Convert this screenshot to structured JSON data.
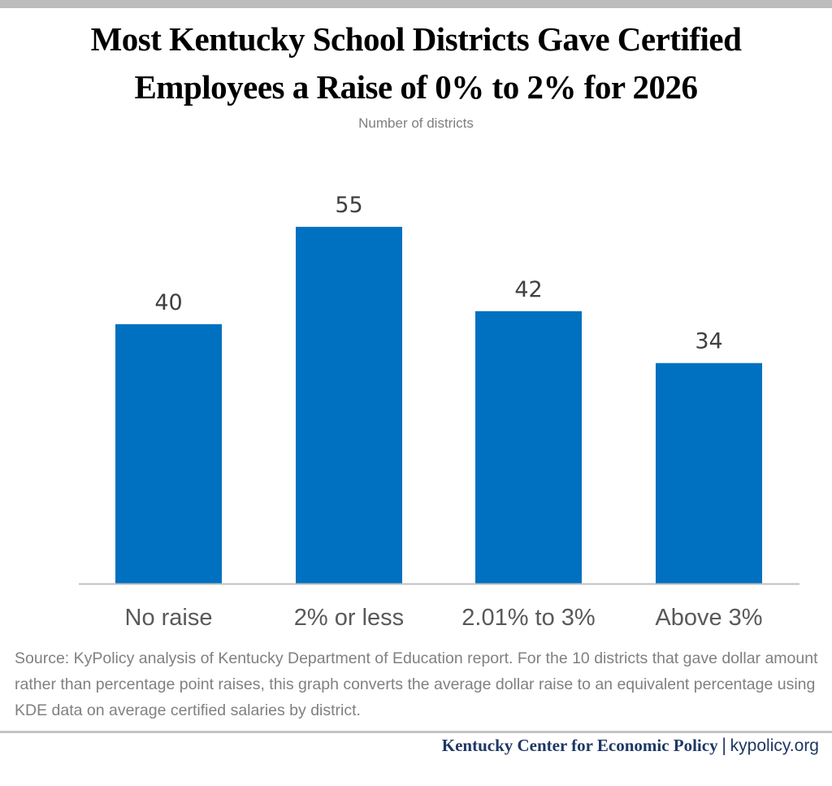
{
  "title_lines": [
    "Most Kentucky School Districts Gave Certified",
    "Employees a Raise of 0% to 2% for 2026"
  ],
  "subtitle": "Number of districts",
  "chart_data": {
    "type": "bar",
    "title": "Most Kentucky School Districts Gave Certified Employees a Raise of 0% to 2% for 2026",
    "subtitle": "Number of districts",
    "categories": [
      "No raise",
      "2% or less",
      "2.01% to 3%",
      "Above 3%"
    ],
    "values": [
      40,
      55,
      42,
      34
    ],
    "data_labels": [
      "40",
      "55",
      "42",
      "34"
    ],
    "xlabel": "",
    "ylabel": "",
    "ylim": [
      0,
      60
    ],
    "grid": false,
    "legend": "none",
    "bar_color": "#0070c0"
  },
  "source": "Source: KyPolicy analysis of Kentucky Department of Education report. For the 10 districts that gave dollar amount rather than percentage point raises, this graph converts the average dollar raise to an equivalent percentage using KDE data on average certified salaries by district.",
  "footer": {
    "org": "Kentucky Center for Economic Policy",
    "separator": "|",
    "url": "kypolicy.org"
  }
}
